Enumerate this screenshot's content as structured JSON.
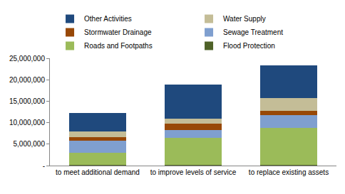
{
  "chart_data": {
    "type": "bar",
    "stacked": true,
    "legend": "top",
    "grid": false,
    "categories": [
      "to meet additional demand",
      "to improve levels of service",
      "to replace existing assets"
    ],
    "series": [
      {
        "name": "Flood Protection",
        "color": "#4f6228",
        "values": [
          200000,
          200000,
          200000
        ]
      },
      {
        "name": "Roads and Footpaths",
        "color": "#9bbb59",
        "values": [
          2700000,
          6300000,
          8500000
        ]
      },
      {
        "name": "Sewage Treatment",
        "color": "#7f9fcf",
        "values": [
          2900000,
          1800000,
          3100000
        ]
      },
      {
        "name": "Stormwater Drainage",
        "color": "#984807",
        "values": [
          900000,
          1500000,
          900000
        ]
      },
      {
        "name": "Water Supply",
        "color": "#c4bd97",
        "values": [
          1300000,
          1200000,
          3100000
        ]
      },
      {
        "name": "Other Activities",
        "color": "#1f497d",
        "values": [
          4300000,
          7800000,
          7500000
        ]
      }
    ],
    "ylim": [
      0,
      25000000
    ],
    "yticks": [
      {
        "value": 0,
        "label": "-"
      },
      {
        "value": 5000000,
        "label": "5,000,000"
      },
      {
        "value": 10000000,
        "label": "10,000,000"
      },
      {
        "value": 15000000,
        "label": "15,000,000"
      },
      {
        "value": 20000000,
        "label": "20,000,000"
      },
      {
        "value": 25000000,
        "label": "25,000,000"
      }
    ]
  }
}
